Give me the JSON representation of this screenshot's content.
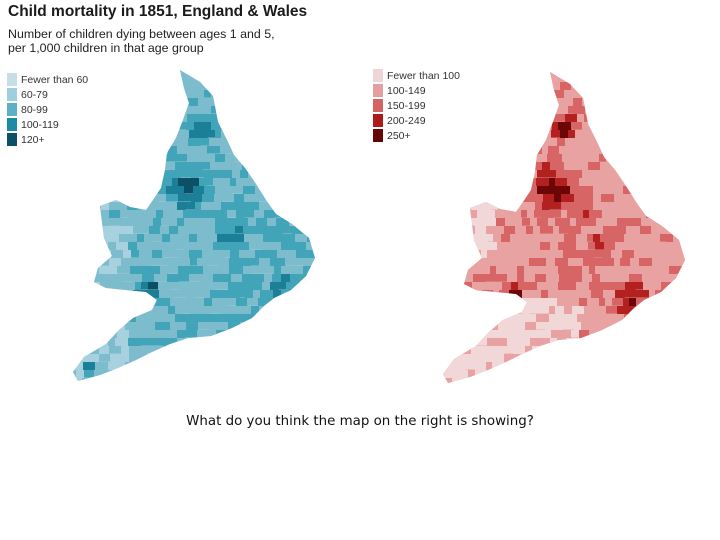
{
  "title": "Child mortality in 1851, England & Wales",
  "subtitle_lines": [
    "Number of children dying between ages 1 and 5,",
    "per 1,000 children in that age group"
  ],
  "left_map": {
    "colors": [
      "#a7d1de",
      "#7cbccd",
      "#42a4b9",
      "#1a7f97",
      "#0c5068"
    ],
    "background": "#a5cfdc",
    "legend": [
      {
        "label": "Fewer than 60",
        "color": "#c6dee6"
      },
      {
        "label": "60-79",
        "color": "#9ecfde"
      },
      {
        "label": "80-99",
        "color": "#5cb1c5"
      },
      {
        "label": "100-119",
        "color": "#1e8aa3"
      },
      {
        "label": "120+",
        "color": "#0b5067"
      }
    ]
  },
  "right_map": {
    "colors": [
      "#f1d7d7",
      "#e8a2a2",
      "#d86565",
      "#b32020",
      "#6d0606"
    ],
    "background": "#e7a0a0",
    "legend": [
      {
        "label": "Fewer than 100",
        "color": "#efd5d5"
      },
      {
        "label": "100-149",
        "color": "#e3a0a0"
      },
      {
        "label": "150-199",
        "color": "#d46464"
      },
      {
        "label": "200-249",
        "color": "#ac1b1b"
      },
      {
        "label": "250+",
        "color": "#650505"
      }
    ]
  },
  "question": "What do you think the map on the right is showing?"
}
